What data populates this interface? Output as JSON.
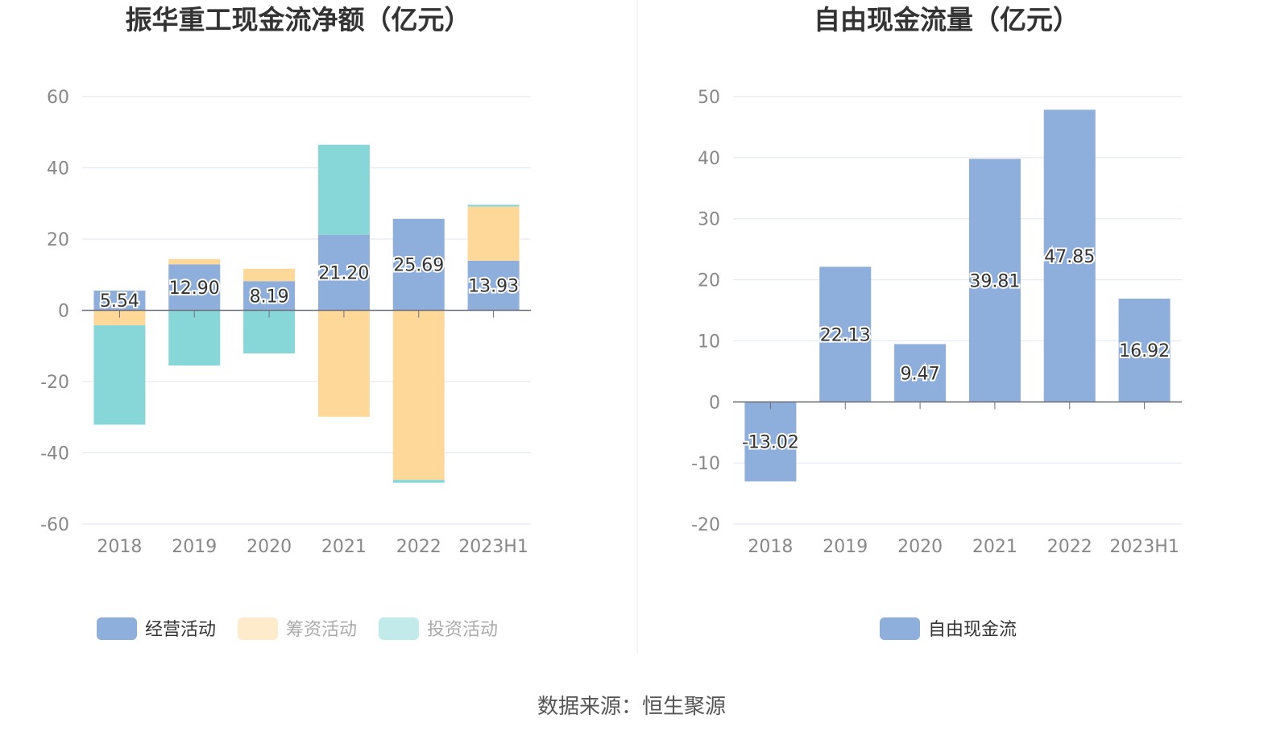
{
  "source": "数据来源：恒生聚源",
  "chart_data": [
    {
      "type": "bar",
      "stacked": true,
      "title": "振华重工现金流净额（亿元）",
      "categories": [
        "2018",
        "2019",
        "2020",
        "2021",
        "2022",
        "2023H1"
      ],
      "ylim": [
        -60,
        60
      ],
      "yticks": [
        60,
        40,
        20,
        0,
        -20,
        -40,
        -60
      ],
      "grid": true,
      "legend_position": "bottom",
      "series": [
        {
          "name": "经营活动",
          "color": "#8eaedb",
          "values": [
            5.54,
            12.9,
            8.19,
            21.2,
            25.69,
            13.93
          ],
          "labels": [
            "5.54",
            "12.90",
            "8.19",
            "21.20",
            "25.69",
            "13.93"
          ],
          "legend_active": true
        },
        {
          "name": "筹资活动",
          "color": "#fed899",
          "values": [
            -4.2,
            1.5,
            3.5,
            -29.9,
            -47.6,
            15.2
          ],
          "legend_active": false
        },
        {
          "name": "投资活动",
          "color": "#87d6d8",
          "values": [
            -27.9,
            -15.5,
            -12.1,
            25.3,
            -0.8,
            0.5
          ],
          "legend_active": false
        }
      ]
    },
    {
      "type": "bar",
      "title": "自由现金流量（亿元）",
      "categories": [
        "2018",
        "2019",
        "2020",
        "2021",
        "2022",
        "2023H1"
      ],
      "ylim": [
        -20,
        50
      ],
      "yticks": [
        50,
        40,
        30,
        20,
        10,
        0,
        -10,
        -20
      ],
      "grid": true,
      "legend_position": "bottom",
      "series": [
        {
          "name": "自由现金流",
          "color": "#8eaedb",
          "values": [
            -13.02,
            22.13,
            9.47,
            39.81,
            47.85,
            16.92
          ],
          "labels": [
            "-13.02",
            "22.13",
            "9.47",
            "39.81",
            "47.85",
            "16.92"
          ],
          "legend_active": true
        }
      ]
    }
  ]
}
